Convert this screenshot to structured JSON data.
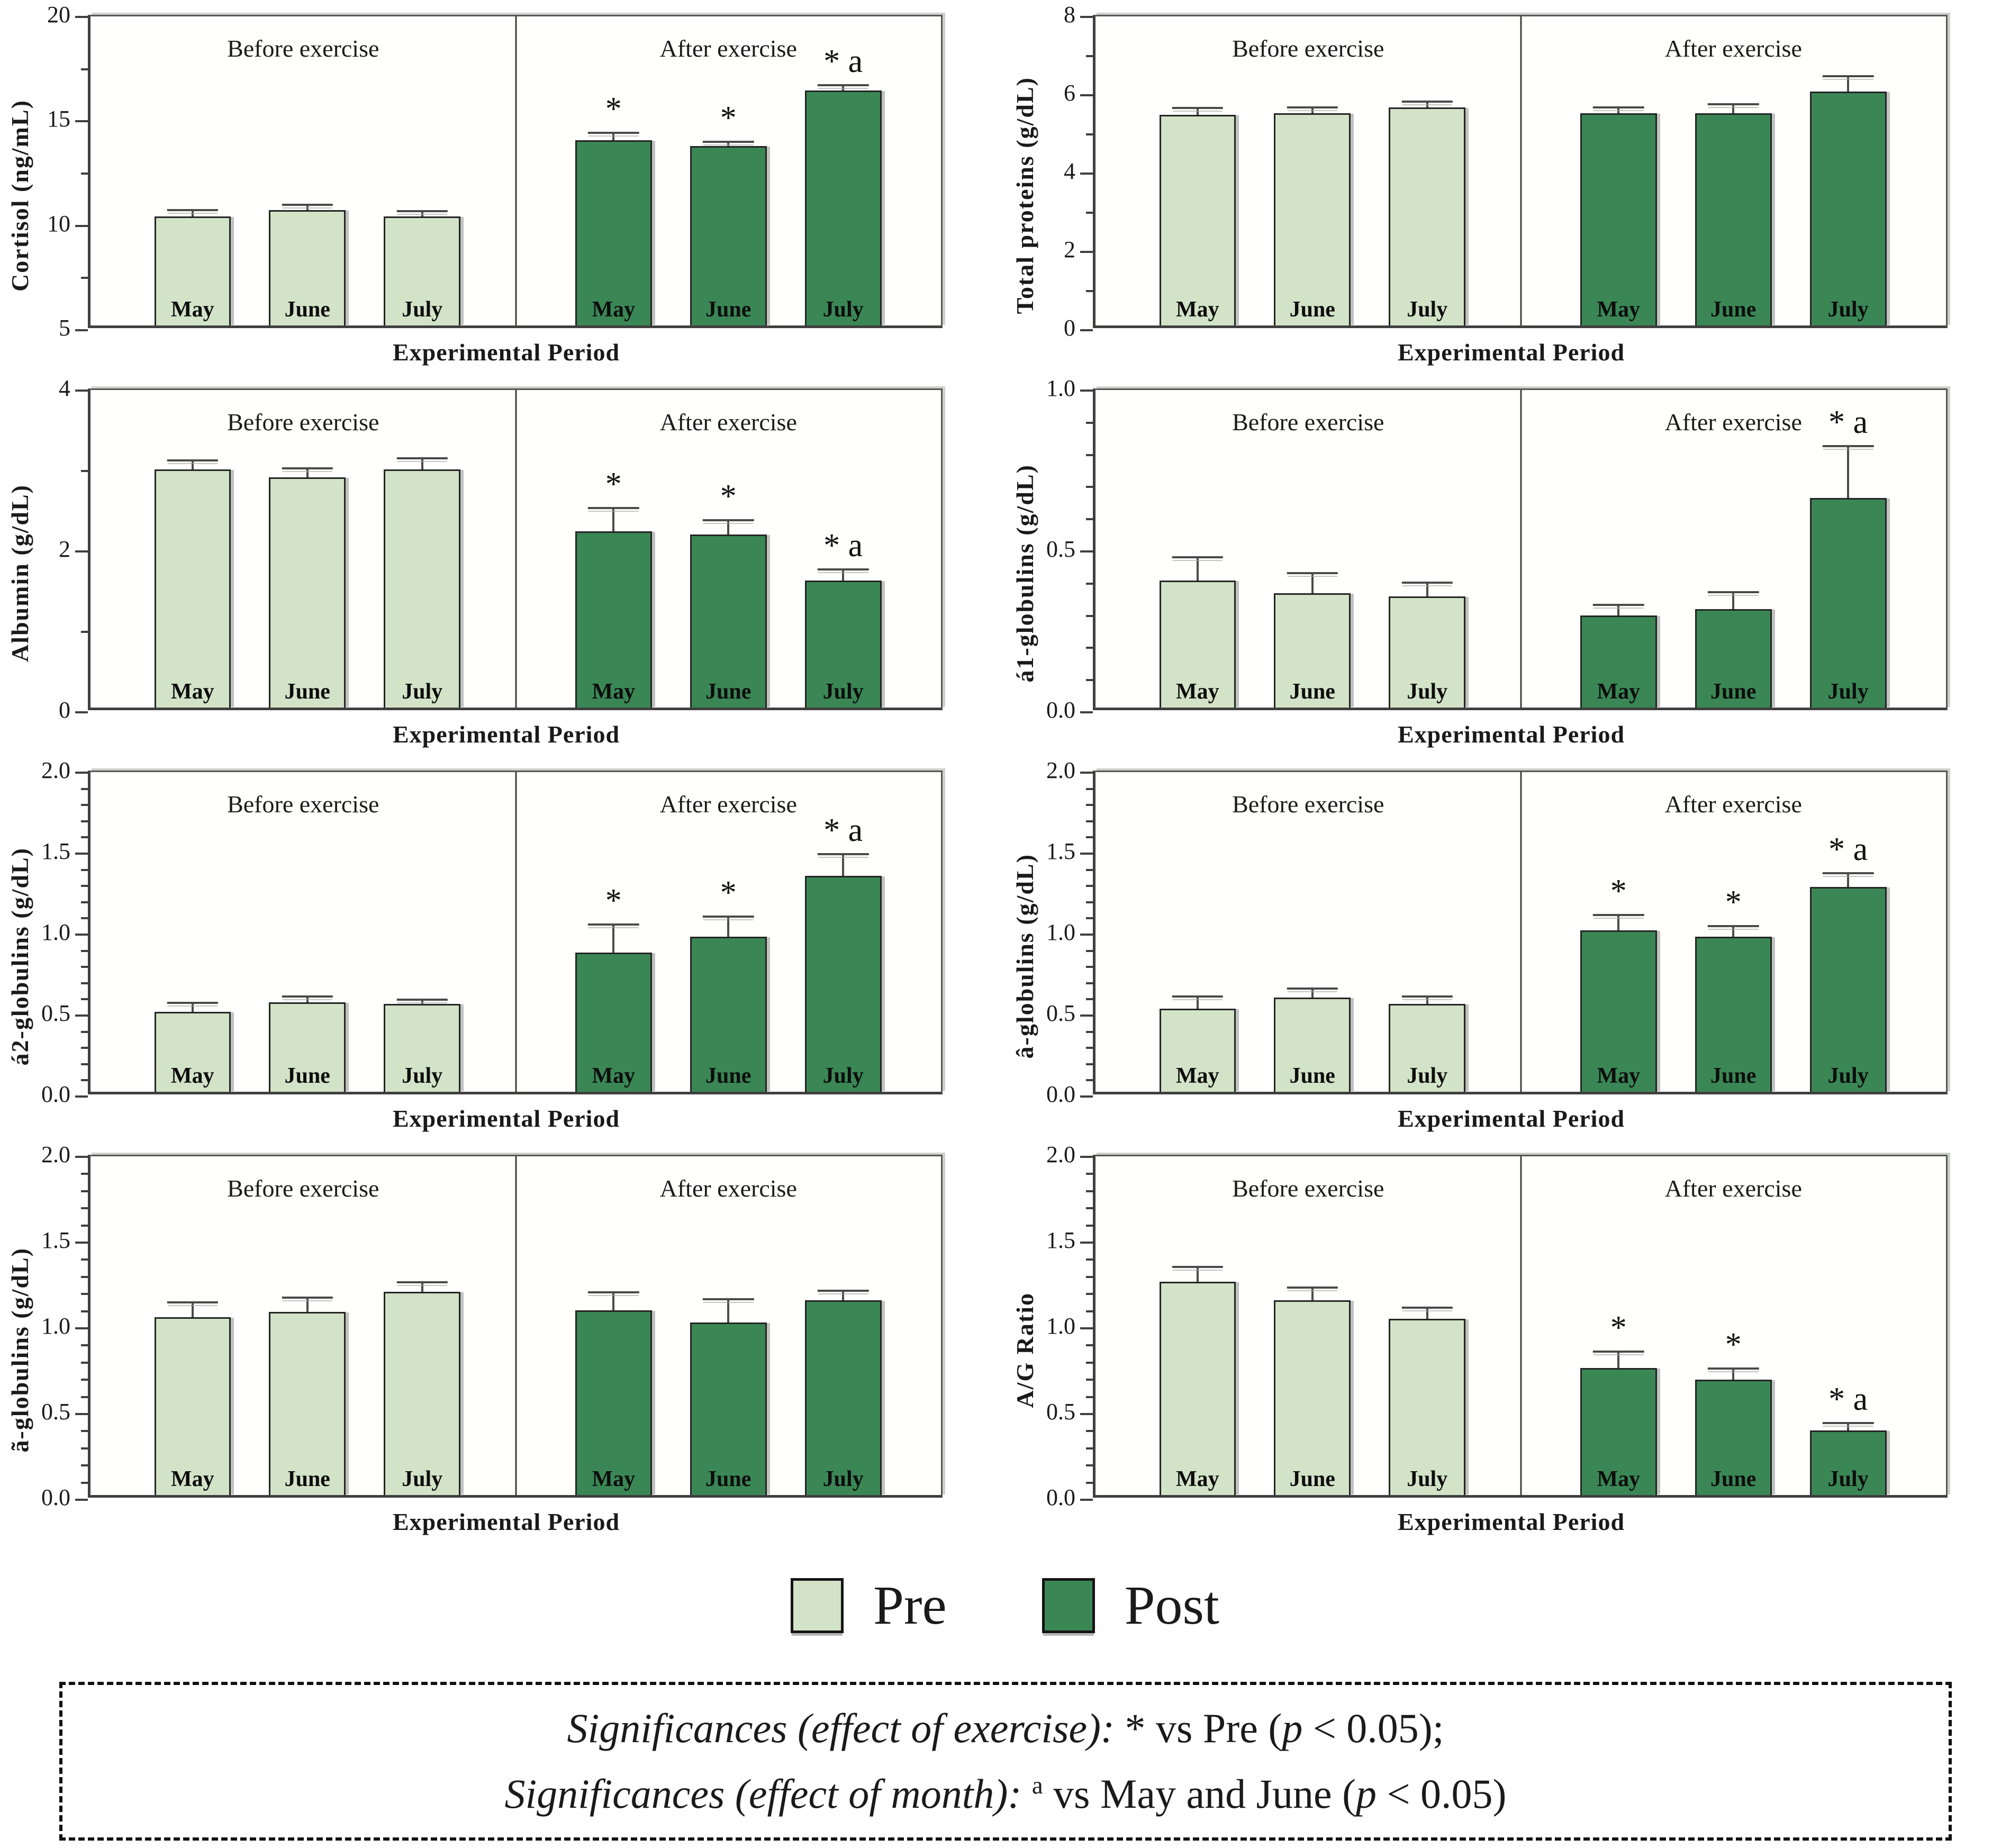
{
  "colors": {
    "pre": "#d2e3c8",
    "post": "#3a8755",
    "bar_border": "#242424",
    "axis_frame": "#3f3f3f",
    "text": "#1a1a1a"
  },
  "legend": {
    "items": [
      {
        "label": "Pre",
        "color_key": "pre"
      },
      {
        "label": "Post",
        "color_key": "post"
      }
    ]
  },
  "note_box": {
    "lines": [
      {
        "segments": [
          {
            "text": "Significances (effect of exercise): ",
            "italic": true
          },
          {
            "text": "* vs Pre (",
            "italic": false
          },
          {
            "text": "p",
            "italic": true
          },
          {
            "text": " < 0.05);",
            "italic": false
          }
        ]
      },
      {
        "segments": [
          {
            "text": "Significances (effect of month): ",
            "italic": true
          },
          {
            "text": "a",
            "italic": false,
            "sup": true
          },
          {
            "text": " vs  May and June (",
            "italic": false
          },
          {
            "text": "p",
            "italic": true
          },
          {
            "text": " < 0.05)",
            "italic": false
          }
        ]
      }
    ]
  },
  "chart_data": [
    {
      "id": "cortisol",
      "type": "grouped-bar",
      "ylabel": "Cortisol (ng/mL)",
      "xlabel": "Experimental Period",
      "ylim": [
        5,
        20
      ],
      "yticks": [
        5,
        10,
        15,
        20
      ],
      "ytick_labels": [
        "5",
        "10",
        "15",
        "20"
      ],
      "yticks_minor": [
        7.5,
        12.5,
        17.5
      ],
      "group_labels": [
        "Before exercise",
        "After exercise"
      ],
      "categories": [
        "May",
        "June",
        "July"
      ],
      "series": [
        {
          "name": "Pre",
          "values": [
            10.3,
            10.6,
            10.3
          ],
          "errors": [
            0.25,
            0.2,
            0.2
          ],
          "sig": [
            "",
            "",
            ""
          ]
        },
        {
          "name": "Post",
          "values": [
            14.0,
            13.7,
            16.4
          ],
          "errors": [
            0.3,
            0.15,
            0.2
          ],
          "sig": [
            "*",
            "*",
            "* a"
          ]
        }
      ]
    },
    {
      "id": "total-proteins",
      "type": "grouped-bar",
      "ylabel": "Total proteins (g/dL)",
      "xlabel": "Experimental Period",
      "ylim": [
        0,
        8
      ],
      "yticks": [
        0,
        2,
        4,
        6,
        8
      ],
      "ytick_labels": [
        "0",
        "2",
        "4",
        "6",
        "8"
      ],
      "yticks_minor": [
        1,
        3,
        5,
        7
      ],
      "group_labels": [
        "Before exercise",
        "After exercise"
      ],
      "categories": [
        "May",
        "June",
        "July"
      ],
      "series": [
        {
          "name": "Pre",
          "values": [
            5.45,
            5.5,
            5.65
          ],
          "errors": [
            0.15,
            0.12,
            0.12
          ],
          "sig": [
            "",
            "",
            ""
          ]
        },
        {
          "name": "Post",
          "values": [
            5.5,
            5.5,
            6.05
          ],
          "errors": [
            0.12,
            0.2,
            0.38
          ],
          "sig": [
            "",
            "",
            ""
          ]
        }
      ]
    },
    {
      "id": "albumin",
      "type": "grouped-bar",
      "ylabel": "Albumin (g/dL)",
      "xlabel": "Experimental Period",
      "ylim": [
        0,
        4
      ],
      "yticks": [
        0,
        2,
        4
      ],
      "ytick_labels": [
        "0",
        "2",
        "4"
      ],
      "yticks_minor": [
        1,
        3
      ],
      "group_labels": [
        "Before exercise",
        "After exercise"
      ],
      "categories": [
        "May",
        "June",
        "July"
      ],
      "series": [
        {
          "name": "Pre",
          "values": [
            3.0,
            2.9,
            3.0
          ],
          "errors": [
            0.1,
            0.1,
            0.13
          ],
          "sig": [
            "",
            "",
            ""
          ]
        },
        {
          "name": "Post",
          "values": [
            2.22,
            2.18,
            1.6
          ],
          "errors": [
            0.28,
            0.17,
            0.13
          ],
          "sig": [
            "*",
            "*",
            "* a"
          ]
        }
      ]
    },
    {
      "id": "a1-globulins",
      "type": "grouped-bar",
      "ylabel": "á1-globulins (g/dL)",
      "xlabel": "Experimental Period",
      "ylim": [
        0,
        1
      ],
      "yticks": [
        0,
        0.5,
        1
      ],
      "ytick_labels": [
        "0.0",
        "0.5",
        "1.0"
      ],
      "yticks_minor": [
        0.1,
        0.2,
        0.3,
        0.4,
        0.6,
        0.7,
        0.8,
        0.9
      ],
      "group_labels": [
        "Before exercise",
        "After exercise"
      ],
      "categories": [
        "May",
        "June",
        "July"
      ],
      "series": [
        {
          "name": "Pre",
          "values": [
            0.4,
            0.36,
            0.35
          ],
          "errors": [
            0.07,
            0.06,
            0.04
          ],
          "sig": [
            "",
            "",
            ""
          ]
        },
        {
          "name": "Post",
          "values": [
            0.29,
            0.31,
            0.66
          ],
          "errors": [
            0.03,
            0.05,
            0.16
          ],
          "sig": [
            "",
            "",
            "* a"
          ]
        }
      ]
    },
    {
      "id": "a2-globulins",
      "type": "grouped-bar",
      "ylabel": "á2-globulins (g/dL)",
      "xlabel": "Experimental Period",
      "ylim": [
        0,
        2
      ],
      "yticks": [
        0,
        0.5,
        1,
        1.5,
        2
      ],
      "ytick_labels": [
        "0.0",
        "0.5",
        "1.0",
        "1.5",
        "2.0"
      ],
      "yticks_minor": [
        0.1,
        0.2,
        0.3,
        0.4,
        0.6,
        0.7,
        0.8,
        0.9,
        1.1,
        1.2,
        1.3,
        1.4,
        1.6,
        1.7,
        1.8,
        1.9
      ],
      "group_labels": [
        "Before exercise",
        "After exercise"
      ],
      "categories": [
        "May",
        "June",
        "July"
      ],
      "series": [
        {
          "name": "Pre",
          "values": [
            0.5,
            0.56,
            0.55
          ],
          "errors": [
            0.05,
            0.03,
            0.02
          ],
          "sig": [
            "",
            "",
            ""
          ]
        },
        {
          "name": "Post",
          "values": [
            0.87,
            0.97,
            1.35
          ],
          "errors": [
            0.17,
            0.12,
            0.13
          ],
          "sig": [
            "*",
            "*",
            "* a"
          ]
        }
      ]
    },
    {
      "id": "b-globulins",
      "type": "grouped-bar",
      "ylabel": "â-globulins (g/dL)",
      "xlabel": "Experimental Period",
      "ylim": [
        0,
        2
      ],
      "yticks": [
        0,
        0.5,
        1,
        1.5,
        2
      ],
      "ytick_labels": [
        "0.0",
        "0.5",
        "1.0",
        "1.5",
        "2.0"
      ],
      "yticks_minor": [
        0.1,
        0.2,
        0.3,
        0.4,
        0.6,
        0.7,
        0.8,
        0.9,
        1.1,
        1.2,
        1.3,
        1.4,
        1.6,
        1.7,
        1.8,
        1.9
      ],
      "group_labels": [
        "Before exercise",
        "After exercise"
      ],
      "categories": [
        "May",
        "June",
        "July"
      ],
      "series": [
        {
          "name": "Pre",
          "values": [
            0.52,
            0.59,
            0.55
          ],
          "errors": [
            0.07,
            0.05,
            0.04
          ],
          "sig": [
            "",
            "",
            ""
          ]
        },
        {
          "name": "Post",
          "values": [
            1.01,
            0.97,
            1.28
          ],
          "errors": [
            0.09,
            0.06,
            0.08
          ],
          "sig": [
            "*",
            "*",
            "* a"
          ]
        }
      ]
    },
    {
      "id": "g-globulins",
      "type": "grouped-bar",
      "ylabel": "ã-globulins (g/dL)",
      "xlabel": "Experimental Period",
      "ylim": [
        0,
        2
      ],
      "yticks": [
        0,
        0.5,
        1,
        1.5,
        2
      ],
      "ytick_labels": [
        "0.0",
        "0.5",
        "1.0",
        "1.5",
        "2.0"
      ],
      "yticks_minor": [
        0.1,
        0.2,
        0.3,
        0.4,
        0.6,
        0.7,
        0.8,
        0.9,
        1.1,
        1.2,
        1.3,
        1.4,
        1.6,
        1.7,
        1.8,
        1.9
      ],
      "group_labels": [
        "Before exercise",
        "After exercise"
      ],
      "categories": [
        "May",
        "June",
        "July"
      ],
      "series": [
        {
          "name": "Pre",
          "values": [
            1.05,
            1.08,
            1.2
          ],
          "errors": [
            0.08,
            0.08,
            0.05
          ],
          "sig": [
            "",
            "",
            ""
          ]
        },
        {
          "name": "Post",
          "values": [
            1.09,
            1.02,
            1.15
          ],
          "errors": [
            0.1,
            0.13,
            0.05
          ],
          "sig": [
            "",
            "",
            ""
          ]
        }
      ]
    },
    {
      "id": "ag-ratio",
      "type": "grouped-bar",
      "ylabel": "A/G Ratio",
      "xlabel": "Experimental Period",
      "ylim": [
        0,
        2
      ],
      "yticks": [
        0,
        0.5,
        1,
        1.5,
        2
      ],
      "ytick_labels": [
        "0.0",
        "0.5",
        "1.0",
        "1.5",
        "2.0"
      ],
      "yticks_minor": [
        0.1,
        0.2,
        0.3,
        0.4,
        0.6,
        0.7,
        0.8,
        0.9,
        1.1,
        1.2,
        1.3,
        1.4,
        1.6,
        1.7,
        1.8,
        1.9
      ],
      "group_labels": [
        "Before exercise",
        "After exercise"
      ],
      "categories": [
        "May",
        "June",
        "July"
      ],
      "series": [
        {
          "name": "Pre",
          "values": [
            1.26,
            1.15,
            1.04
          ],
          "errors": [
            0.08,
            0.07,
            0.06
          ],
          "sig": [
            "",
            "",
            ""
          ]
        },
        {
          "name": "Post",
          "values": [
            0.75,
            0.68,
            0.38
          ],
          "errors": [
            0.09,
            0.06,
            0.04
          ],
          "sig": [
            "*",
            "*",
            "* a"
          ]
        }
      ]
    }
  ]
}
